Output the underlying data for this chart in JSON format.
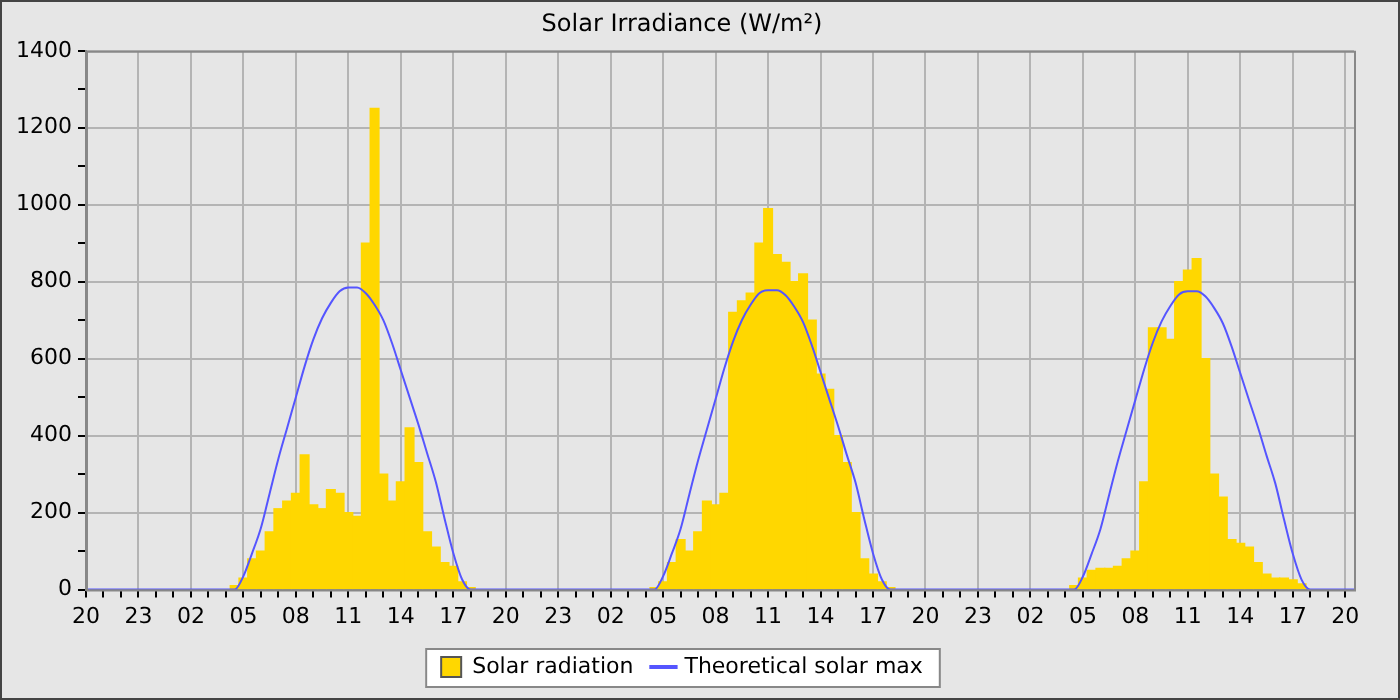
{
  "chart_data": {
    "type": "bar",
    "title": "Solar Irradiance (W/m²)",
    "categories": [
      "20",
      null,
      null,
      null,
      null,
      null,
      "23",
      null,
      null,
      null,
      null,
      null,
      "02",
      null,
      null,
      null,
      null,
      null,
      "05",
      null,
      null,
      null,
      null,
      null,
      "08",
      null,
      null,
      null,
      null,
      null,
      "11",
      null,
      null,
      null,
      null,
      null,
      "14",
      null,
      null,
      null,
      null,
      null,
      "17",
      null,
      null,
      null,
      null,
      null,
      "20",
      null,
      null,
      null,
      null,
      null,
      "23",
      null,
      null,
      null,
      null,
      null,
      "02",
      null,
      null,
      null,
      null,
      null,
      "05",
      null,
      null,
      null,
      null,
      null,
      "08",
      null,
      null,
      null,
      null,
      null,
      "11",
      null,
      null,
      null,
      null,
      null,
      "14",
      null,
      null,
      null,
      null,
      null,
      "17",
      null,
      null,
      null,
      null,
      null,
      "20",
      null,
      null,
      null,
      null,
      null,
      "23",
      null,
      null,
      null,
      null,
      null,
      "02",
      null,
      null,
      null,
      null,
      null,
      "05",
      null,
      null,
      null,
      null,
      null,
      "08",
      null,
      null,
      null,
      null,
      null,
      "11",
      null,
      null,
      null,
      null,
      null,
      "14",
      null,
      null,
      null,
      null,
      null,
      "17",
      null,
      null,
      null,
      null,
      null,
      "20",
      null
    ],
    "ylim": [
      0,
      1400
    ],
    "yticks": [
      0,
      {
        "value": 100,
        "label": null
      },
      200,
      {
        "value": 300,
        "label": null
      },
      400,
      {
        "value": 500,
        "label": null
      },
      600,
      {
        "value": 700,
        "label": null
      },
      800,
      {
        "value": 900,
        "label": null
      },
      1000,
      {
        "value": 1100,
        "label": null
      },
      1200,
      {
        "value": 1300,
        "label": null
      },
      1400
    ],
    "grid": true,
    "legend": "bottom",
    "marker": "none",
    "series": [
      {
        "name": "Solar radiation",
        "type": "bar",
        "color": "#ffd700",
        "values": [
          null,
          null,
          null,
          null,
          null,
          null,
          null,
          null,
          null,
          null,
          null,
          null,
          null,
          null,
          null,
          null,
          null,
          10,
          30,
          80,
          100,
          150,
          210,
          230,
          250,
          350,
          220,
          210,
          260,
          250,
          200,
          190,
          900,
          1250,
          300,
          230,
          280,
          420,
          330,
          150,
          110,
          70,
          60,
          20,
          5,
          null,
          null,
          null,
          null,
          null,
          null,
          null,
          null,
          null,
          null,
          null,
          null,
          null,
          null,
          null,
          null,
          null,
          null,
          null,
          null,
          5,
          20,
          70,
          130,
          100,
          150,
          230,
          220,
          250,
          720,
          750,
          770,
          900,
          990,
          870,
          850,
          800,
          820,
          700,
          560,
          520,
          400,
          330,
          200,
          80,
          40,
          20,
          5,
          null,
          null,
          null,
          null,
          null,
          null,
          null,
          null,
          null,
          null,
          null,
          null,
          null,
          null,
          null,
          null,
          null,
          null,
          null,
          null,
          10,
          30,
          50,
          55,
          55,
          60,
          80,
          100,
          280,
          680,
          680,
          650,
          800,
          830,
          860,
          600,
          300,
          240,
          130,
          120,
          110,
          70,
          40,
          30,
          30,
          25,
          15,
          null,
          null,
          null,
          null,
          null,
          null
        ]
      },
      {
        "name": "Theoretical solar max",
        "type": "line",
        "color": "#5555ff",
        "values": [
          0,
          0,
          0,
          0,
          0,
          0,
          0,
          0,
          0,
          0,
          0,
          0,
          0,
          0,
          0,
          0,
          0,
          0,
          35,
          95,
          160,
          250,
          340,
          420,
          500,
          580,
          650,
          705,
          745,
          775,
          785,
          785,
          770,
          740,
          700,
          640,
          570,
          500,
          430,
          355,
          280,
          185,
          95,
          27,
          0,
          0,
          0,
          0,
          0,
          0,
          0,
          0,
          0,
          0,
          0,
          0,
          0,
          0,
          0,
          0,
          0,
          0,
          0,
          0,
          0,
          0,
          35,
          94,
          158,
          248,
          336,
          416,
          495,
          575,
          645,
          700,
          740,
          770,
          778,
          778,
          765,
          735,
          695,
          635,
          565,
          495,
          425,
          350,
          278,
          183,
          94,
          27,
          0,
          0,
          0,
          0,
          0,
          0,
          0,
          0,
          0,
          0,
          0,
          0,
          0,
          0,
          0,
          0,
          0,
          0,
          0,
          0,
          0,
          0,
          34,
          93,
          157,
          246,
          334,
          414,
          493,
          572,
          642,
          697,
          737,
          767,
          775,
          775,
          762,
          732,
          692,
          632,
          562,
          492,
          423,
          348,
          276,
          182,
          93,
          26,
          0,
          0,
          0,
          0,
          0,
          0
        ]
      }
    ]
  }
}
